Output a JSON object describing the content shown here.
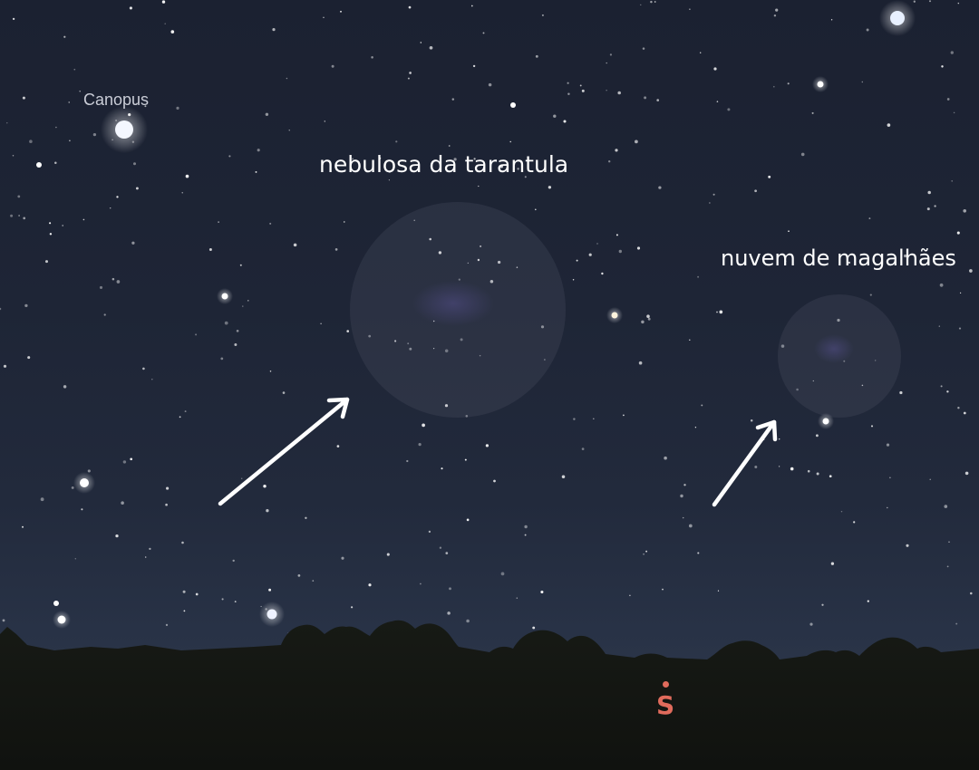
{
  "star_label": "Canopus",
  "annotations": {
    "tarantula": "nebulosa da tarantula",
    "magellan": "nuvem de magalhães"
  },
  "compass": {
    "direction": "S",
    "color": "#e06b5c"
  }
}
